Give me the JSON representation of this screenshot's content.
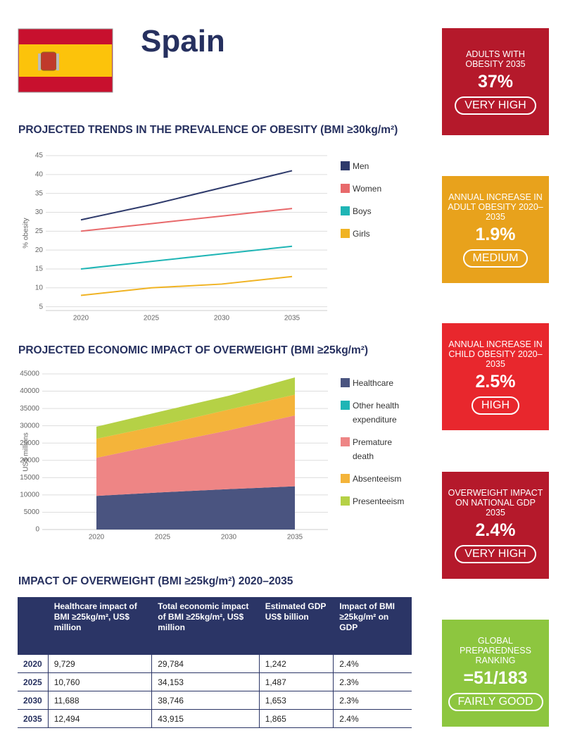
{
  "header": {
    "title": "Spain"
  },
  "chart_data": [
    {
      "type": "line",
      "title": "PROJECTED TRENDS IN THE PREVALENCE OF OBESITY (BMI ≥30kg/m²)",
      "y_label": "% obesity",
      "categories": [
        "2020",
        "2025",
        "2030",
        "2035"
      ],
      "series": [
        {
          "name": "Men",
          "color": "#2e3a6b",
          "values": [
            28,
            32,
            36.5,
            41
          ]
        },
        {
          "name": "Women",
          "color": "#e8696b",
          "values": [
            25,
            27,
            29,
            31
          ]
        },
        {
          "name": "Boys",
          "color": "#1fb5b5",
          "values": [
            15,
            17,
            19,
            21
          ]
        },
        {
          "name": "Girls",
          "color": "#f0b323",
          "values": [
            8,
            10,
            11,
            13
          ]
        }
      ],
      "ylim": [
        4,
        45
      ],
      "yticks": [
        5,
        10,
        15,
        20,
        25,
        30,
        35,
        40,
        45
      ],
      "grid": true
    },
    {
      "type": "stacked_area",
      "title": "PROJECTED ECONOMIC IMPACT OF OVERWEIGHT (BMI ≥25kg/m²)",
      "y_label": "US$ millions",
      "categories": [
        "2020",
        "2025",
        "2030",
        "2035"
      ],
      "series": [
        {
          "name": "Healthcare",
          "color": "#4a5480",
          "values": [
            9729,
            10760,
            11688,
            12494
          ]
        },
        {
          "name": "Other health expenditure",
          "color": "#1fb5b5",
          "values": [
            0,
            0,
            0,
            0
          ]
        },
        {
          "name": "Premature death",
          "color": "#ee8585",
          "values": [
            11000,
            14000,
            17000,
            20500
          ]
        },
        {
          "name": "Absenteeism",
          "color": "#f4b43a",
          "values": [
            5500,
            5500,
            6000,
            6000
          ]
        },
        {
          "name": "Presenteeism",
          "color": "#b5d146",
          "values": [
            3500,
            4000,
            4000,
            5000
          ]
        }
      ],
      "ylim": [
        0,
        45000
      ],
      "yticks": [
        0,
        5000,
        10000,
        15000,
        20000,
        25000,
        30000,
        35000,
        40000,
        45000
      ],
      "grid": true
    }
  ],
  "table": {
    "title": "IMPACT OF OVERWEIGHT (BMI ≥25kg/m²) 2020–2035",
    "columns": [
      "Healthcare impact of BMI ≥25kg/m², US$ million",
      "Total economic impact of BMI ≥25kg/m², US$ million",
      "Estimated GDP US$ billion",
      "Impact of BMI ≥25kg/m² on GDP"
    ],
    "rows": [
      [
        "2020",
        "9,729",
        "29,784",
        "1,242",
        "2.4%"
      ],
      [
        "2025",
        "10,760",
        "34,153",
        "1,487",
        "2.3%"
      ],
      [
        "2030",
        "11,688",
        "38,746",
        "1,653",
        "2.3%"
      ],
      [
        "2035",
        "12,494",
        "43,915",
        "1,865",
        "2.4%"
      ]
    ]
  },
  "indicators": [
    {
      "label": "ADULTS WITH OBESITY 2035",
      "value": "37%",
      "rating": "VERY HIGH",
      "color": "#b5192b"
    },
    {
      "label": "ANNUAL INCREASE IN ADULT OBESITY 2020–2035",
      "value": "1.9%",
      "rating": "MEDIUM",
      "color": "#e8a21c"
    },
    {
      "label": "ANNUAL INCREASE IN CHILD OBESITY 2020–2035",
      "value": "2.5%",
      "rating": "HIGH",
      "color": "#e8272d"
    },
    {
      "label": "OVERWEIGHT IMPACT ON NATIONAL GDP 2035",
      "value": "2.4%",
      "rating": "VERY HIGH",
      "color": "#b5192b"
    },
    {
      "label": "GLOBAL PREPAREDNESS RANKING",
      "value": "=51/183",
      "rating": "FAIRLY GOOD",
      "color": "#8dc63f"
    }
  ]
}
